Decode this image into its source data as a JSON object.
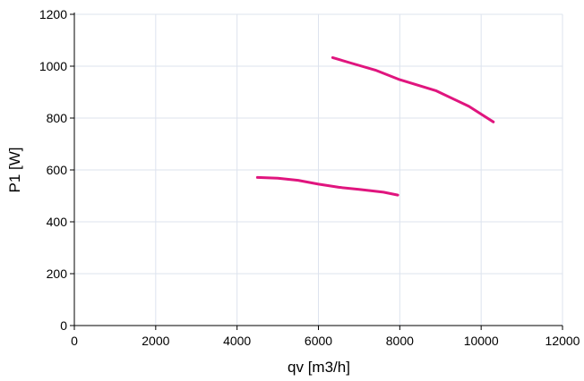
{
  "chart_data": {
    "type": "line",
    "title": "",
    "xlabel": "qv [m3/h]",
    "ylabel": "P1 [W]",
    "xlim": [
      0,
      12000
    ],
    "ylim": [
      0,
      1200
    ],
    "x_ticks": [
      "0",
      "2000",
      "4000",
      "6000",
      "8000",
      "10000",
      "12000"
    ],
    "y_ticks": [
      "0",
      "200",
      "400",
      "600",
      "800",
      "1000",
      "1200"
    ],
    "grid": true,
    "legend": "none",
    "series": [
      {
        "color": "#e0157e",
        "points": [
          [
            6350,
            1033
          ],
          [
            6800,
            1012
          ],
          [
            7400,
            985
          ],
          [
            8000,
            948
          ],
          [
            8900,
            905
          ],
          [
            9700,
            845
          ],
          [
            10300,
            785
          ]
        ]
      },
      {
        "color": "#e0157e",
        "points": [
          [
            4500,
            571
          ],
          [
            5000,
            568
          ],
          [
            5500,
            560
          ],
          [
            6000,
            545
          ],
          [
            6500,
            533
          ],
          [
            7000,
            525
          ],
          [
            7600,
            514
          ],
          [
            7950,
            503
          ]
        ]
      }
    ]
  }
}
